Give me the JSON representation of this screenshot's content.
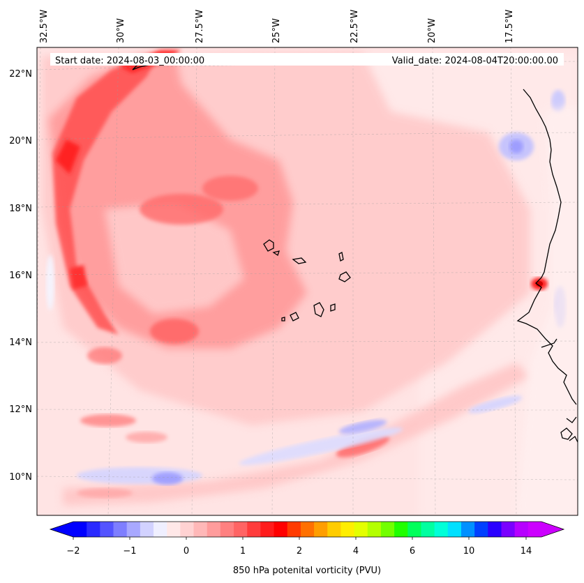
{
  "map": {
    "title_left": "Start date: 2024-08-03_00:00:00",
    "title_right": "Valid_date: 2024-08-04T20:00:00.00",
    "lon_labels": [
      "32.5°W",
      "30°W",
      "27.5°W",
      "25°W",
      "22.5°W",
      "20°W",
      "17.5°W"
    ],
    "lat_labels": [
      "22°N",
      "20°N",
      "18°N",
      "16°N",
      "14°N",
      "12°N",
      "10°N"
    ]
  },
  "colorbar": {
    "label": "850 hPa potenital vorticity (PVU)",
    "ticks": [
      "−2",
      "−1",
      "0",
      "1",
      "2",
      "4",
      "6",
      "10",
      "14"
    ],
    "colors": [
      "#0000ff",
      "#2a2aff",
      "#5454ff",
      "#7e7eff",
      "#a8a8ff",
      "#d2d2ff",
      "#efefff",
      "#ffe8e8",
      "#ffd2d2",
      "#ffb8b8",
      "#ff9c9c",
      "#ff8080",
      "#ff6464",
      "#ff3c3c",
      "#ff1c1c",
      "#ff0000",
      "#ff3a00",
      "#ff7000",
      "#ff9e00",
      "#ffcc00",
      "#ffee00",
      "#e4ff00",
      "#b4ff00",
      "#72ff00",
      "#20ff00",
      "#00ff5a",
      "#00ffa0",
      "#00ffd8",
      "#00e0ff",
      "#0090ff",
      "#0040ff",
      "#2a00ff",
      "#7a00ff",
      "#b600ff",
      "#cc00ff"
    ]
  },
  "colors": {
    "base_field": "#ffe6e6",
    "coast": "#000000"
  }
}
